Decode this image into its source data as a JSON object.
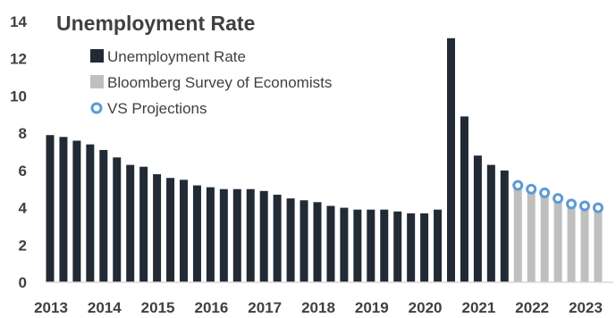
{
  "chart_data": {
    "type": "bar",
    "title": "Unemployment Rate",
    "ylim": [
      0,
      14
    ],
    "y_ticks": [
      "0",
      "2",
      "4",
      "6",
      "8",
      "10",
      "12",
      "14"
    ],
    "x_ticks": [
      "2013",
      "2014",
      "2015",
      "2016",
      "2017",
      "2018",
      "2019",
      "2020",
      "2021",
      "2022",
      "2023"
    ],
    "legend_position": "top-left",
    "grid": false,
    "series": [
      {
        "name": "Unemployment Rate",
        "kind": "bar",
        "color": "#222a35",
        "values": [
          7.9,
          7.8,
          7.6,
          7.4,
          7.1,
          6.7,
          6.3,
          6.2,
          5.8,
          5.6,
          5.5,
          5.2,
          5.1,
          5.0,
          5.0,
          5.0,
          4.9,
          4.7,
          4.5,
          4.4,
          4.3,
          4.1,
          4.0,
          3.9,
          3.9,
          3.9,
          3.8,
          3.7,
          3.7,
          3.9,
          13.1,
          8.9,
          6.8,
          6.3,
          6.0
        ]
      },
      {
        "name": "Bloomberg Survey of Economists",
        "kind": "bar",
        "color": "#bfbfbf",
        "values": [
          5.3,
          5.1,
          4.8,
          4.5,
          4.3,
          4.2,
          4.0
        ]
      },
      {
        "name": "VS Projections",
        "kind": "marker",
        "color": "#5b9bd5",
        "values": [
          5.2,
          5.0,
          4.8,
          4.5,
          4.2,
          4.1,
          4.0
        ]
      }
    ]
  }
}
